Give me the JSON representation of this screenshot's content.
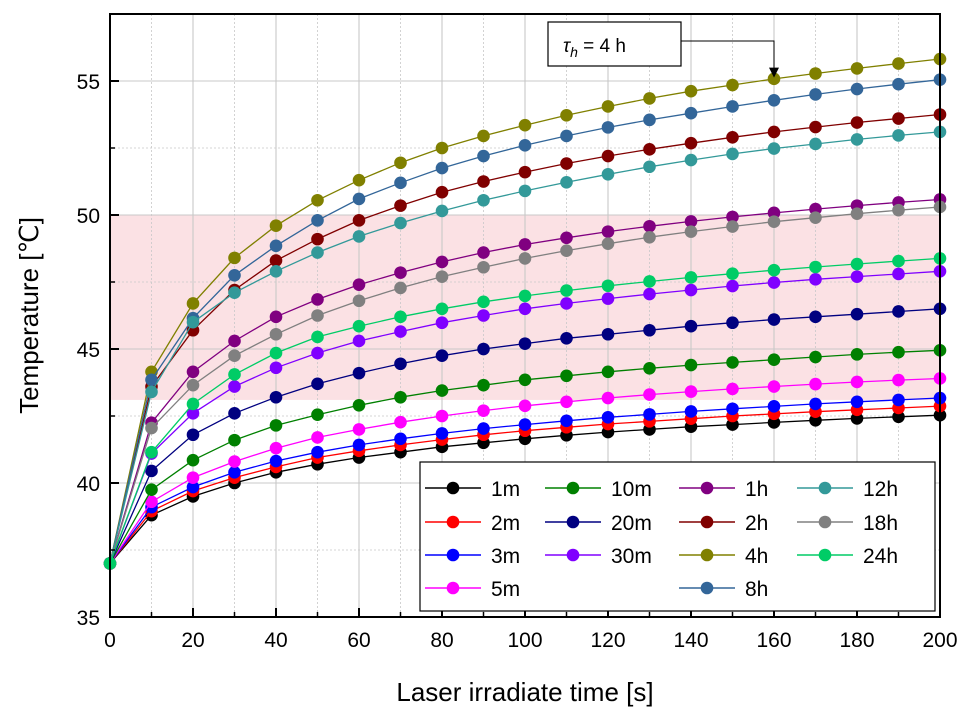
{
  "chart_data": {
    "type": "line",
    "title": "",
    "xlabel": "Laser irradiate time [s]",
    "ylabel": "Temperature [℃]",
    "xlim": [
      0,
      200
    ],
    "ylim": [
      35,
      57.5
    ],
    "xticks": [
      "0",
      "20",
      "40",
      "60",
      "80",
      "100",
      "120",
      "140",
      "160",
      "180",
      "200"
    ],
    "yticks": [
      "35",
      "40",
      "45",
      "50",
      "55"
    ],
    "grid": true,
    "legend_position": "bottom-right",
    "shaded_band": {
      "y_from": 43.1,
      "y_to": 50,
      "color": "#fbe1e4"
    },
    "annotation": {
      "text": "τ",
      "subscript": "h",
      "rest": " = 4 h",
      "point": [
        160,
        55.05
      ]
    },
    "x": [
      0,
      10,
      20,
      30,
      40,
      50,
      60,
      70,
      80,
      90,
      100,
      110,
      120,
      130,
      140,
      150,
      160,
      170,
      180,
      190,
      200
    ],
    "series": [
      {
        "name": "1m",
        "color": "#000000",
        "values": [
          37.0,
          38.8,
          39.5,
          40.0,
          40.4,
          40.7,
          40.95,
          41.15,
          41.35,
          41.5,
          41.65,
          41.78,
          41.9,
          42.0,
          42.1,
          42.18,
          42.26,
          42.34,
          42.41,
          42.47,
          42.53
        ]
      },
      {
        "name": "2m",
        "color": "#ff0000",
        "values": [
          37.0,
          38.95,
          39.7,
          40.2,
          40.6,
          40.95,
          41.2,
          41.42,
          41.62,
          41.8,
          41.95,
          42.08,
          42.2,
          42.3,
          42.4,
          42.5,
          42.58,
          42.66,
          42.73,
          42.8,
          42.87
        ]
      },
      {
        "name": "3m",
        "color": "#0000ff",
        "values": [
          37.0,
          39.1,
          39.85,
          40.4,
          40.82,
          41.15,
          41.42,
          41.65,
          41.85,
          42.03,
          42.18,
          42.32,
          42.45,
          42.56,
          42.67,
          42.77,
          42.86,
          42.95,
          43.03,
          43.1,
          43.17
        ]
      },
      {
        "name": "5m",
        "color": "#ff00ff",
        "values": [
          37.0,
          39.3,
          40.2,
          40.8,
          41.3,
          41.7,
          42.0,
          42.27,
          42.5,
          42.7,
          42.88,
          43.03,
          43.17,
          43.3,
          43.41,
          43.51,
          43.6,
          43.69,
          43.77,
          43.84,
          43.9
        ]
      },
      {
        "name": "10m",
        "color": "#008000",
        "values": [
          37.0,
          39.75,
          40.85,
          41.6,
          42.15,
          42.55,
          42.9,
          43.2,
          43.45,
          43.65,
          43.85,
          44.0,
          44.15,
          44.28,
          44.4,
          44.5,
          44.6,
          44.7,
          44.8,
          44.88,
          44.95
        ]
      },
      {
        "name": "20m",
        "color": "#000080",
        "values": [
          37.0,
          40.45,
          41.8,
          42.6,
          43.2,
          43.7,
          44.1,
          44.45,
          44.75,
          45.0,
          45.2,
          45.4,
          45.55,
          45.7,
          45.85,
          45.98,
          46.1,
          46.2,
          46.3,
          46.4,
          46.5
        ]
      },
      {
        "name": "30m",
        "color": "#8000ff",
        "values": [
          37.0,
          41.1,
          42.6,
          43.6,
          44.3,
          44.85,
          45.3,
          45.65,
          45.98,
          46.25,
          46.5,
          46.7,
          46.88,
          47.05,
          47.2,
          47.35,
          47.48,
          47.6,
          47.7,
          47.8,
          47.9
        ]
      },
      {
        "name": "1h",
        "color": "#800080",
        "values": [
          37.0,
          42.25,
          44.15,
          45.3,
          46.2,
          46.85,
          47.4,
          47.85,
          48.25,
          48.6,
          48.9,
          49.15,
          49.38,
          49.58,
          49.76,
          49.93,
          50.08,
          50.22,
          50.35,
          50.47,
          50.58
        ]
      },
      {
        "name": "2h",
        "color": "#800000",
        "values": [
          37.0,
          43.6,
          45.7,
          47.2,
          48.3,
          49.1,
          49.8,
          50.35,
          50.85,
          51.25,
          51.6,
          51.92,
          52.2,
          52.45,
          52.68,
          52.9,
          53.1,
          53.28,
          53.45,
          53.6,
          53.75
        ]
      },
      {
        "name": "4h",
        "color": "#808000",
        "values": [
          37.0,
          44.15,
          46.7,
          48.4,
          49.6,
          50.55,
          51.3,
          51.95,
          52.5,
          52.95,
          53.35,
          53.72,
          54.05,
          54.35,
          54.62,
          54.85,
          55.08,
          55.28,
          55.47,
          55.65,
          55.82
        ]
      },
      {
        "name": "8h",
        "color": "#336699",
        "values": [
          37.0,
          43.85,
          46.15,
          47.75,
          48.85,
          49.8,
          50.6,
          51.2,
          51.75,
          52.2,
          52.6,
          52.95,
          53.27,
          53.55,
          53.8,
          54.05,
          54.28,
          54.5,
          54.7,
          54.88,
          55.05
        ]
      },
      {
        "name": "12h",
        "color": "#339999",
        "values": [
          37.0,
          43.4,
          46.0,
          47.1,
          47.9,
          48.6,
          49.2,
          49.7,
          50.15,
          50.55,
          50.9,
          51.22,
          51.52,
          51.8,
          52.05,
          52.28,
          52.48,
          52.65,
          52.82,
          52.97,
          53.1
        ]
      },
      {
        "name": "18h",
        "color": "#808080",
        "values": [
          37.0,
          42.05,
          43.65,
          44.75,
          45.55,
          46.25,
          46.8,
          47.28,
          47.7,
          48.05,
          48.38,
          48.67,
          48.93,
          49.17,
          49.38,
          49.57,
          49.75,
          49.9,
          50.05,
          50.18,
          50.3
        ]
      },
      {
        "name": "24h",
        "color": "#00cc66",
        "values": [
          37.0,
          41.15,
          42.95,
          44.05,
          44.85,
          45.45,
          45.85,
          46.2,
          46.5,
          46.76,
          46.98,
          47.18,
          47.36,
          47.52,
          47.67,
          47.81,
          47.94,
          48.06,
          48.17,
          48.28,
          48.38
        ]
      }
    ]
  }
}
